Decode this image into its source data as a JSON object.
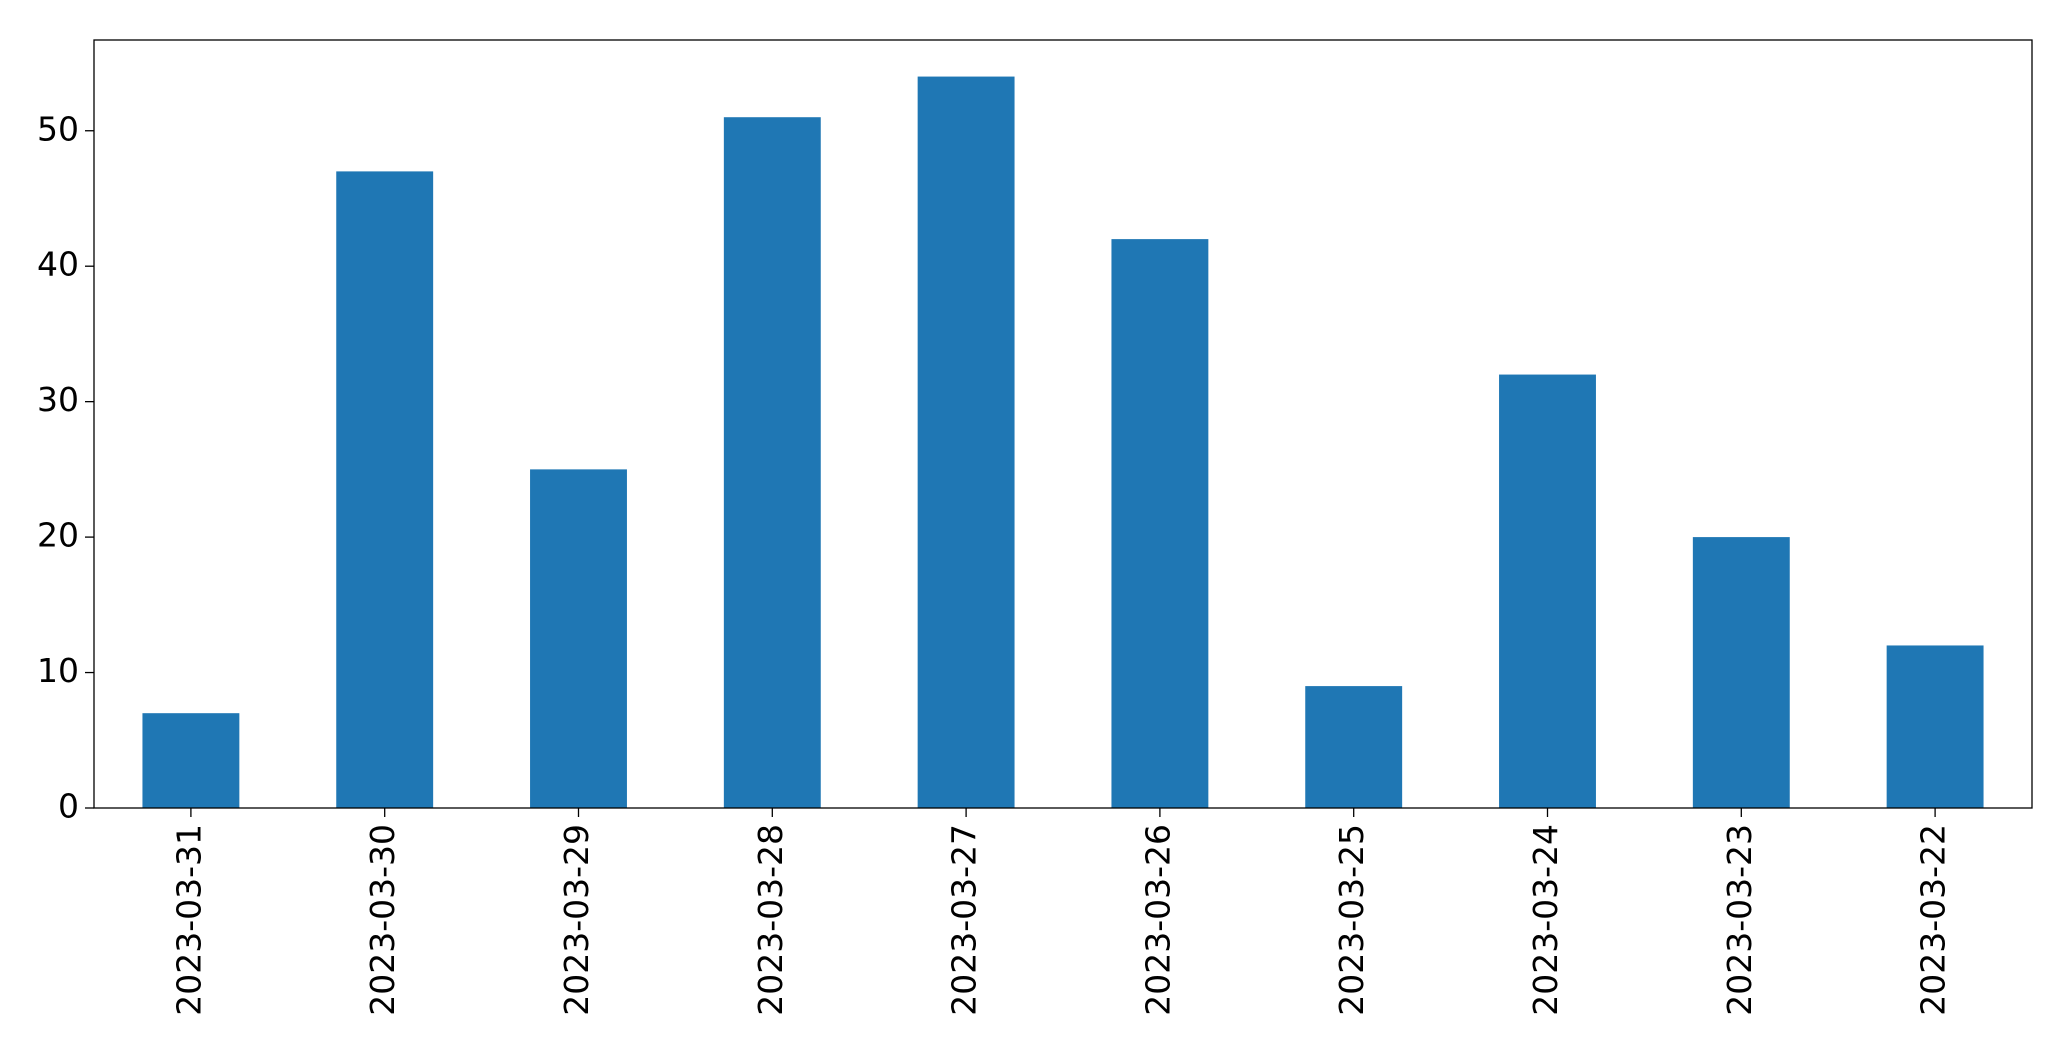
{
  "chart_data": {
    "type": "bar",
    "categories": [
      "2023-03-31",
      "2023-03-30",
      "2023-03-29",
      "2023-03-28",
      "2023-03-27",
      "2023-03-26",
      "2023-03-25",
      "2023-03-24",
      "2023-03-23",
      "2023-03-22"
    ],
    "values": [
      7,
      47,
      25,
      51,
      54,
      42,
      9,
      32,
      20,
      12
    ],
    "color": "#1f77b4",
    "ylim": [
      0,
      56.7
    ],
    "yticks": [
      0,
      10,
      20,
      30,
      40,
      50
    ],
    "grid": false
  }
}
